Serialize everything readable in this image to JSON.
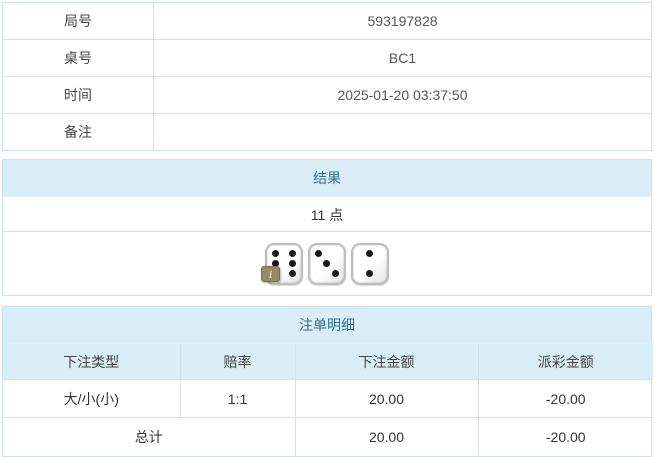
{
  "info": {
    "rows": [
      {
        "label": "局号",
        "value": "593197828"
      },
      {
        "label": "桌号",
        "value": "BC1"
      },
      {
        "label": "时间",
        "value": "2025-01-20 03:37:50"
      },
      {
        "label": "备注",
        "value": ""
      }
    ]
  },
  "result": {
    "title": "结果",
    "points": "11 点",
    "dice": [
      6,
      3,
      2
    ],
    "info_icon": "i"
  },
  "bets": {
    "title": "注单明细",
    "columns": [
      "下注类型",
      "赔率",
      "下注金额",
      "派彩金额"
    ],
    "rows": [
      {
        "type": "大/小(小)",
        "odds": "1:1",
        "amount": "20.00",
        "payout": "-20.00"
      }
    ],
    "total": {
      "label": "总计",
      "amount": "20.00",
      "payout": "-20.00"
    }
  },
  "colors": {
    "header_bg": "#d9edf7",
    "header_text": "#31708f",
    "panel_border": "#c7e4f0",
    "negative_red": "#e0262b"
  }
}
